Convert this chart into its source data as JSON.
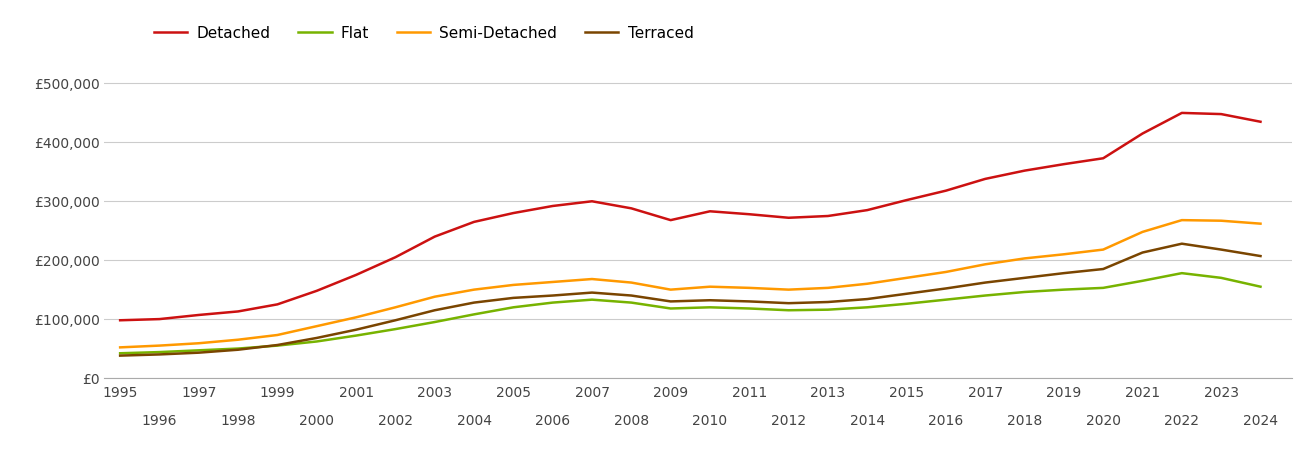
{
  "years": [
    1995,
    1996,
    1997,
    1998,
    1999,
    2000,
    2001,
    2002,
    2003,
    2004,
    2005,
    2006,
    2007,
    2008,
    2009,
    2010,
    2011,
    2012,
    2013,
    2014,
    2015,
    2016,
    2017,
    2018,
    2019,
    2020,
    2021,
    2022,
    2023,
    2024
  ],
  "detached": [
    98000,
    100000,
    107000,
    113000,
    125000,
    148000,
    175000,
    205000,
    240000,
    265000,
    280000,
    292000,
    300000,
    288000,
    268000,
    283000,
    278000,
    272000,
    275000,
    285000,
    302000,
    318000,
    338000,
    352000,
    363000,
    373000,
    415000,
    450000,
    448000,
    435000
  ],
  "flat": [
    42000,
    44000,
    47000,
    50000,
    55000,
    62000,
    72000,
    83000,
    95000,
    108000,
    120000,
    128000,
    133000,
    128000,
    118000,
    120000,
    118000,
    115000,
    116000,
    120000,
    126000,
    133000,
    140000,
    146000,
    150000,
    153000,
    165000,
    178000,
    170000,
    155000
  ],
  "semi_detached": [
    52000,
    55000,
    59000,
    65000,
    73000,
    88000,
    103000,
    120000,
    138000,
    150000,
    158000,
    163000,
    168000,
    162000,
    150000,
    155000,
    153000,
    150000,
    153000,
    160000,
    170000,
    180000,
    193000,
    203000,
    210000,
    218000,
    248000,
    268000,
    267000,
    262000
  ],
  "terraced": [
    38000,
    40000,
    43000,
    48000,
    56000,
    68000,
    82000,
    98000,
    115000,
    128000,
    136000,
    140000,
    145000,
    140000,
    130000,
    132000,
    130000,
    127000,
    129000,
    134000,
    143000,
    152000,
    162000,
    170000,
    178000,
    185000,
    213000,
    228000,
    218000,
    207000
  ],
  "colors": {
    "detached": "#cc1111",
    "flat": "#77b300",
    "semi_detached": "#ff9900",
    "terraced": "#7a4500"
  },
  "ylim": [
    0,
    550000
  ],
  "yticks": [
    0,
    100000,
    200000,
    300000,
    400000,
    500000
  ],
  "ytick_labels": [
    "£0",
    "£100,000",
    "£200,000",
    "£300,000",
    "£400,000",
    "£500,000"
  ],
  "legend_labels": [
    "Detached",
    "Flat",
    "Semi-Detached",
    "Terraced"
  ],
  "background_color": "#ffffff",
  "grid_color": "#cccccc",
  "line_width": 1.8,
  "xlim": [
    1994.6,
    2024.8
  ]
}
